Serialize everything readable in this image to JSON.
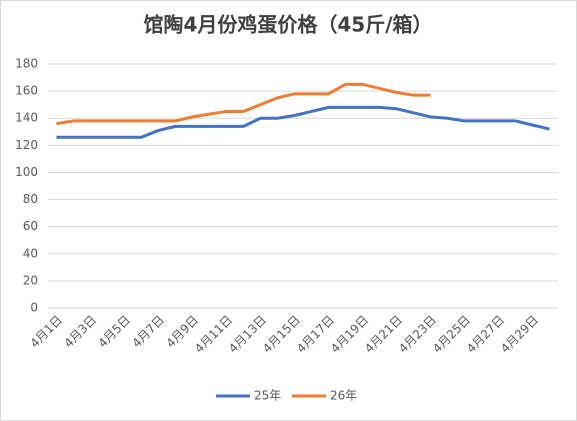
{
  "chart_data": {
    "type": "line",
    "title": "馆陶4月份鸡蛋价格（45斤/箱）",
    "categories": [
      "4月1日",
      null,
      "4月3日",
      null,
      "4月5日",
      null,
      "4月7日",
      null,
      "4月9日",
      null,
      "4月11日",
      null,
      "4月13日",
      null,
      "4月15日",
      null,
      "4月17日",
      null,
      "4月19日",
      null,
      "4月21日",
      null,
      "4月23日",
      null,
      "4月25日",
      null,
      "4月27日",
      null,
      "4月29日",
      null
    ],
    "series": [
      {
        "name": "25年",
        "color": "#4472c4",
        "values": [
          126,
          126,
          126,
          126,
          126,
          126,
          131,
          134,
          134,
          134,
          134,
          134,
          140,
          140,
          142,
          145,
          148,
          148,
          148,
          148,
          147,
          144,
          141,
          140,
          138,
          138,
          138,
          138,
          135,
          132
        ]
      },
      {
        "name": "26年",
        "color": "#ed7d31",
        "values": [
          136,
          138,
          138,
          138,
          138,
          138,
          138,
          138,
          141,
          143,
          145,
          145,
          150,
          155,
          158,
          158,
          158,
          165,
          165,
          162,
          159,
          157,
          157,
          null,
          null,
          null,
          null,
          null,
          null,
          null
        ]
      }
    ],
    "ylim": [
      0,
      180
    ],
    "yticks": [
      0,
      20,
      40,
      60,
      80,
      100,
      120,
      140,
      160,
      180
    ],
    "grid": true,
    "legend": "bottom"
  }
}
